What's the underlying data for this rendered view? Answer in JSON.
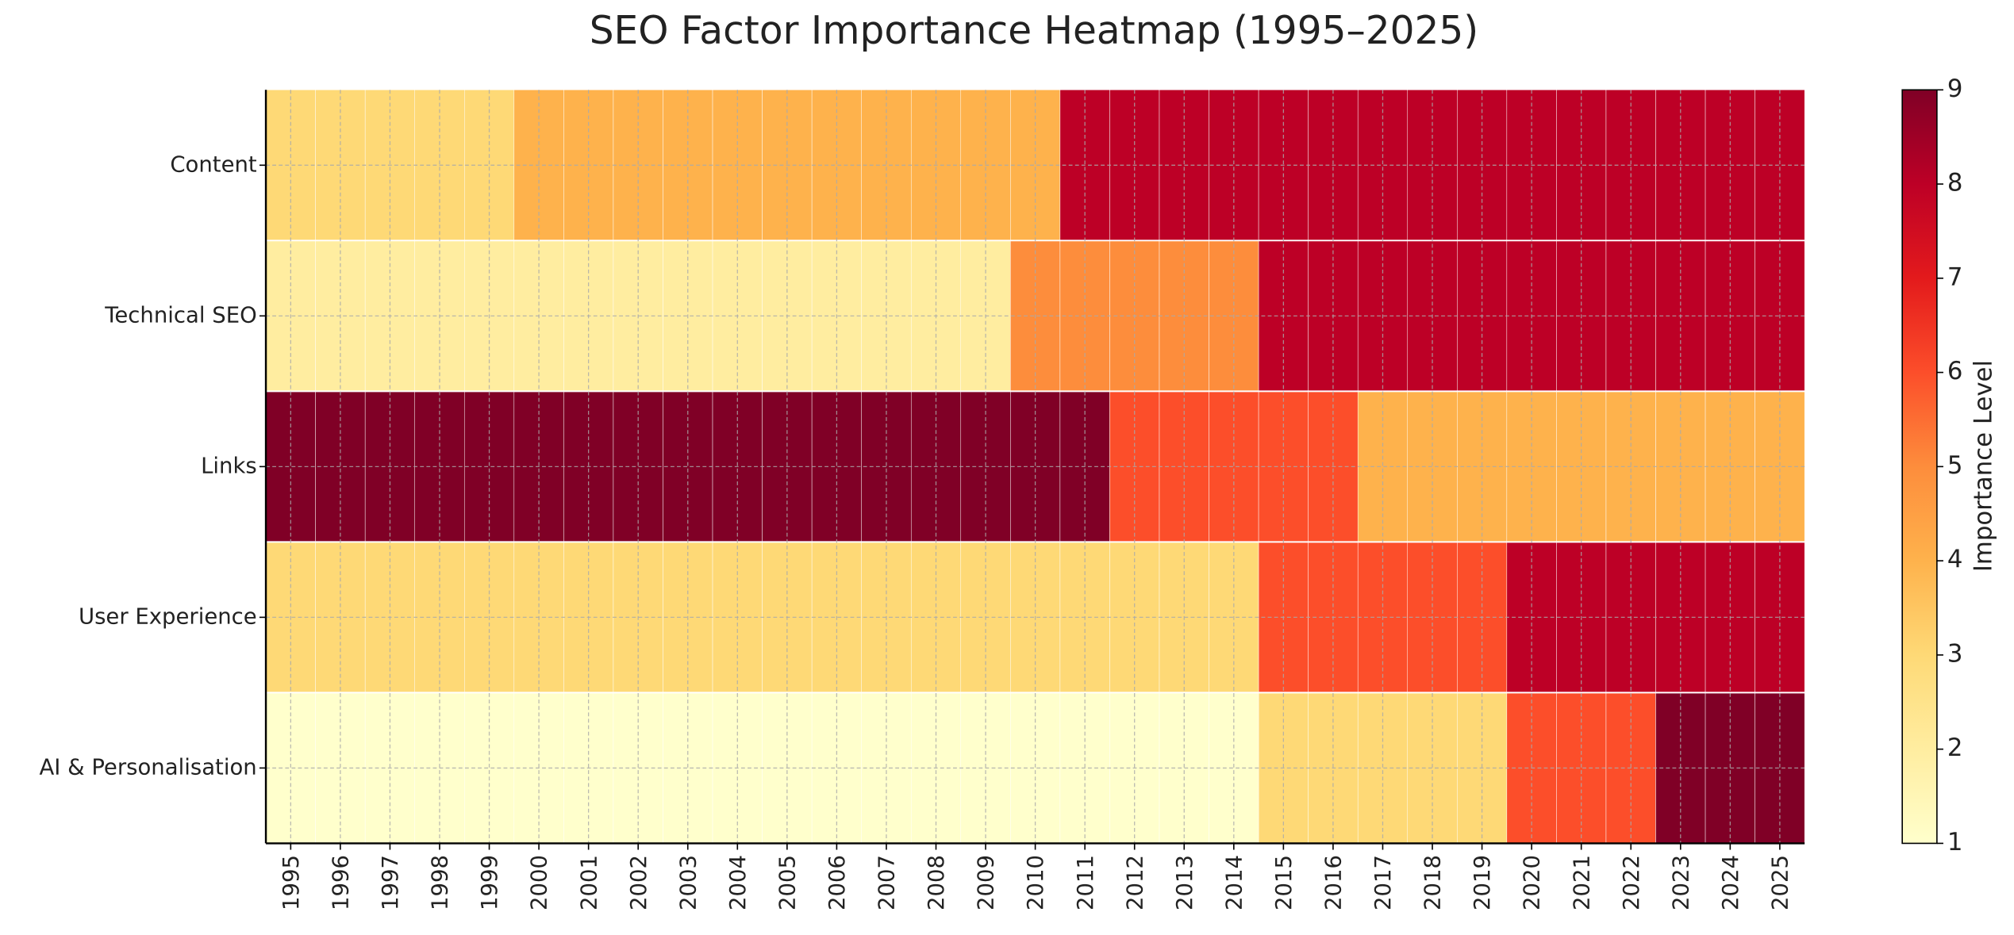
{
  "chart_data": {
    "type": "heatmap",
    "title": "SEO Factor Importance Heatmap (1995–2025)",
    "x": [
      1995,
      1996,
      1997,
      1998,
      1999,
      2000,
      2001,
      2002,
      2003,
      2004,
      2005,
      2006,
      2007,
      2008,
      2009,
      2010,
      2011,
      2012,
      2013,
      2014,
      2015,
      2016,
      2017,
      2018,
      2019,
      2020,
      2021,
      2022,
      2023,
      2024,
      2025
    ],
    "y_categories": [
      "Content",
      "Technical SEO",
      "Links",
      "User Experience",
      "AI & Personalisation"
    ],
    "values": [
      [
        3,
        3,
        3,
        3,
        3,
        4,
        4,
        4,
        4,
        4,
        4,
        4,
        4,
        4,
        4,
        4,
        8,
        8,
        8,
        8,
        8,
        8,
        8,
        8,
        8,
        8,
        8,
        8,
        8,
        8,
        8
      ],
      [
        2,
        2,
        2,
        2,
        2,
        2,
        2,
        2,
        2,
        2,
        2,
        2,
        2,
        2,
        2,
        5,
        5,
        5,
        5,
        5,
        8,
        8,
        8,
        8,
        8,
        8,
        8,
        8,
        8,
        8,
        8
      ],
      [
        9,
        9,
        9,
        9,
        9,
        9,
        9,
        9,
        9,
        9,
        9,
        9,
        9,
        9,
        9,
        9,
        9,
        6,
        6,
        6,
        6,
        6,
        4,
        4,
        4,
        4,
        4,
        4,
        4,
        4,
        4
      ],
      [
        3,
        3,
        3,
        3,
        3,
        3,
        3,
        3,
        3,
        3,
        3,
        3,
        3,
        3,
        3,
        3,
        3,
        3,
        3,
        3,
        6,
        6,
        6,
        6,
        6,
        8,
        8,
        8,
        8,
        8,
        8
      ],
      [
        1,
        1,
        1,
        1,
        1,
        1,
        1,
        1,
        1,
        1,
        1,
        1,
        1,
        1,
        1,
        1,
        1,
        1,
        1,
        1,
        3,
        3,
        3,
        3,
        3,
        6,
        6,
        6,
        9,
        9,
        9
      ]
    ],
    "colorscale": [
      "#ffffcc",
      "#ffeda0",
      "#fed976",
      "#feb24c",
      "#fd8d3c",
      "#fc4e2a",
      "#e31a1c",
      "#bd0026",
      "#800026"
    ],
    "colorbar_label": "Importance Level",
    "clim": [
      1,
      9
    ],
    "cticks": [
      1,
      2,
      3,
      4,
      5,
      6,
      7,
      8,
      9
    ],
    "grid": true
  }
}
